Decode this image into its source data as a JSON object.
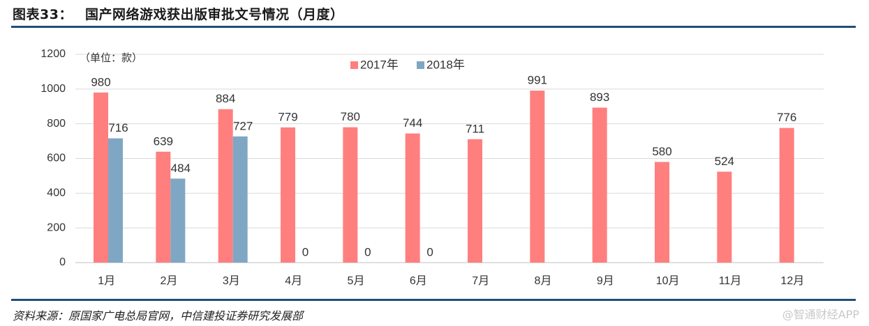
{
  "header": {
    "label": "图表33：",
    "text": "国产网络游戏获出版审批文号情况（月度）"
  },
  "footer": {
    "source": "资料来源：原国家广电总局官网，中信建投证券研究发展部",
    "watermark": "@智通财经APP"
  },
  "chart_data": {
    "type": "bar",
    "unit_label": "（单位：款）",
    "categories": [
      "1月",
      "2月",
      "3月",
      "4月",
      "5月",
      "6月",
      "7月",
      "8月",
      "9月",
      "10月",
      "11月",
      "12月"
    ],
    "series": [
      {
        "name": "2017年",
        "color": "#ff7f7f",
        "values": [
          980,
          639,
          884,
          779,
          780,
          744,
          711,
          991,
          893,
          580,
          524,
          776
        ],
        "labels": [
          "980",
          "639",
          "884",
          "779",
          "780",
          "744",
          "711",
          "991",
          "893",
          "580",
          "524",
          "776"
        ]
      },
      {
        "name": "2018年",
        "color": "#7fa7c4",
        "values": [
          716,
          484,
          727,
          0,
          0,
          0,
          null,
          null,
          null,
          null,
          null,
          null
        ],
        "labels": [
          "716",
          "484",
          "727",
          "0",
          "0",
          "0",
          null,
          null,
          null,
          null,
          null,
          null
        ]
      }
    ],
    "y_ticks": [
      "0",
      "200",
      "400",
      "600",
      "800",
      "1000",
      "1200"
    ],
    "ylim": [
      0,
      1200
    ],
    "grid": true,
    "legend_position": "top-center"
  }
}
